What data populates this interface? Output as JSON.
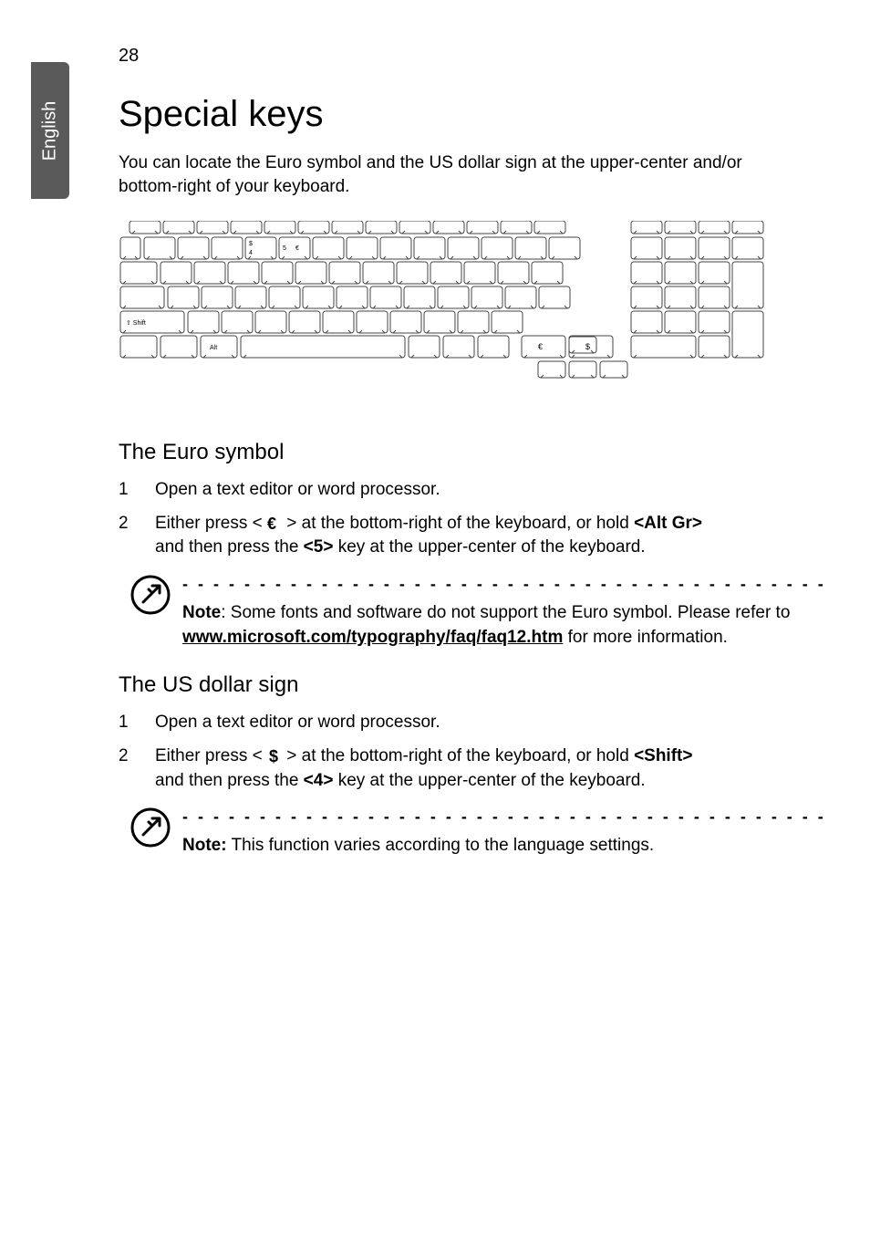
{
  "page_number": "28",
  "side_tab": "English",
  "title": "Special keys",
  "intro": "You can locate the Euro symbol and the US dollar sign at the upper-center and/or bottom-right of your keyboard.",
  "euro": {
    "heading": "The Euro symbol",
    "step1_num": "1",
    "step1_text": "Open a text editor or word processor.",
    "step2_num": "2",
    "step2_pre": "Either press < ",
    "step2_mid": " > at the bottom-right of the keyboard, or hold ",
    "step2_key": "<Alt Gr>",
    "step2_line2a": "and then press the ",
    "step2_key2": "<5>",
    "step2_line2b": " key at the upper-center of the keyboard.",
    "note_label": "Note",
    "note_text1": ": Some fonts and software do not support the Euro symbol. Please refer to ",
    "note_link": "www.microsoft.com/typography/faq/faq12.htm",
    "note_text2": " for more information."
  },
  "dollar": {
    "heading": "The US dollar sign",
    "step1_num": "1",
    "step1_text": "Open a text editor or word processor.",
    "step2_num": "2",
    "step2_pre": "Either press < ",
    "step2_mid": " > at the bottom-right of the keyboard, or hold ",
    "step2_key": "<Shift>",
    "step2_line2a": "and then press the ",
    "step2_key2": "<4>",
    "step2_line2b": " key at the upper-center of the keyboard.",
    "note_label": "Note:",
    "note_text": " This function varies according to the language settings."
  },
  "dashes": "- - - - - - - - - - - - - - - - - - - - - - - - - - - - - - - - - - - - - - - - - -",
  "kbd": {
    "key_4_top": "$",
    "key_4_main": "4",
    "key_5_main": "5",
    "key_5_right": "€",
    "shift_label": "⇧ Shift",
    "alt_label": "Alt",
    "bottom_euro": "€",
    "bottom_dollar": "$"
  },
  "colors": {
    "stroke": "#444444",
    "fill": "#ffffff",
    "text": "#000000",
    "tab_bg": "#5a5a5a",
    "tab_fg": "#ffffff"
  }
}
